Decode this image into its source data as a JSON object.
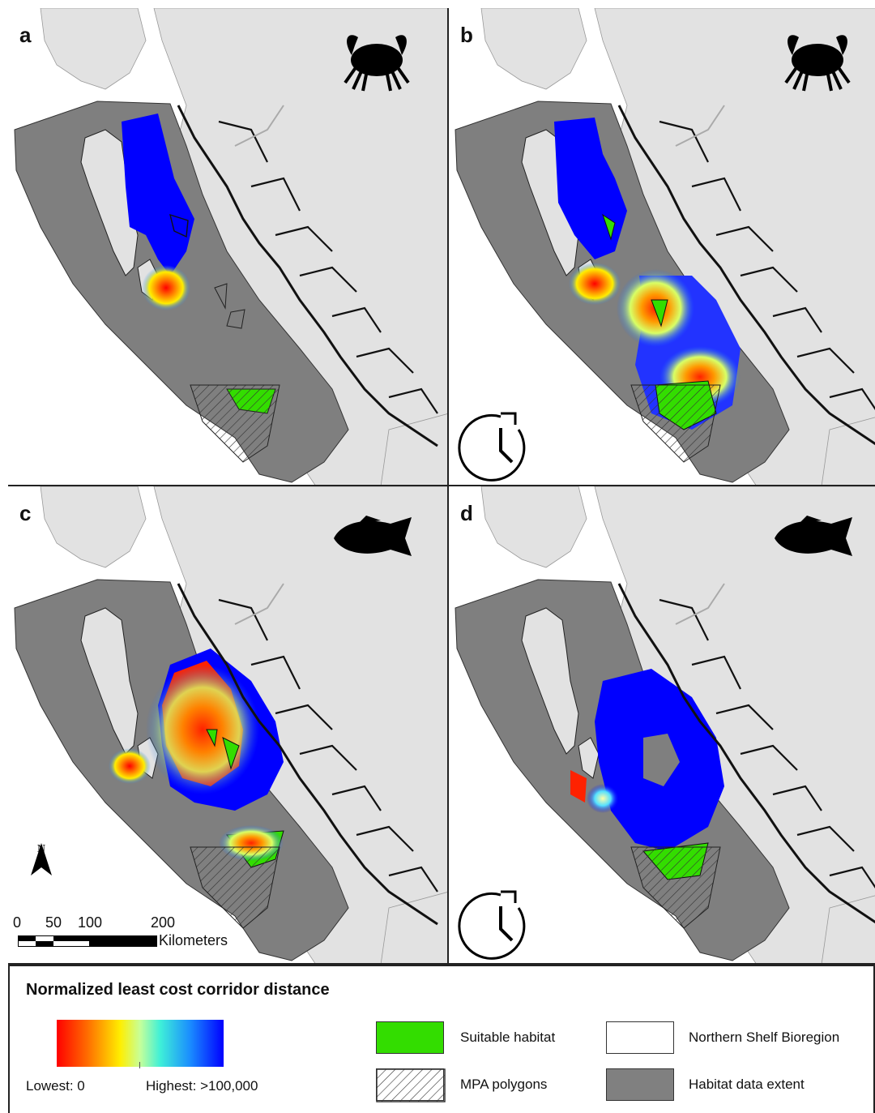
{
  "panels": [
    {
      "letter": "a",
      "icon": "crab-icon",
      "clock": false
    },
    {
      "letter": "b",
      "icon": "crab-icon",
      "clock": true
    },
    {
      "letter": "c",
      "icon": "fish-icon",
      "clock": false
    },
    {
      "letter": "d",
      "icon": "fish-icon",
      "clock": true
    }
  ],
  "north_label": "N",
  "scale": {
    "ticks": [
      "0",
      "50",
      "100",
      "200"
    ],
    "unit": "Kilometers"
  },
  "legend": {
    "title": "Normalized least cost corridor distance",
    "low_label": "Lowest: 0",
    "high_label": "Highest: >100,000",
    "items": [
      {
        "label": "Suitable habitat",
        "color": "#33dd00",
        "pattern": "solid"
      },
      {
        "label": "MPA polygons",
        "color": "#ffffff",
        "pattern": "hatch"
      },
      {
        "label": "Northern Shelf Bioregion",
        "color": "#ffffff",
        "pattern": "solid"
      },
      {
        "label": "Habitat data extent",
        "color": "#808080",
        "pattern": "solid"
      }
    ]
  },
  "colors": {
    "land": "#e2e2e2",
    "habitat_extent": "#7f7f7f",
    "suitable_habitat": "#33dd00",
    "corridor_low": "#ff0000",
    "corridor_high": "#0000ff"
  }
}
